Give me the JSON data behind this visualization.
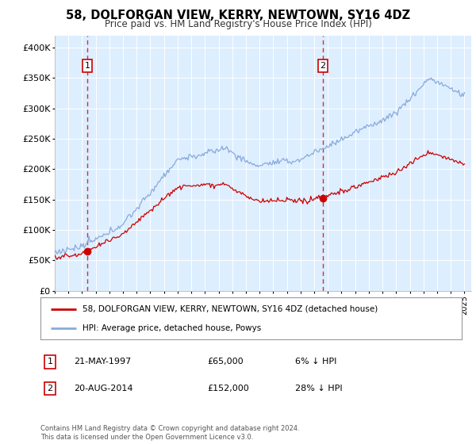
{
  "title": "58, DOLFORGAN VIEW, KERRY, NEWTOWN, SY16 4DZ",
  "subtitle": "Price paid vs. HM Land Registry's House Price Index (HPI)",
  "legend_line1": "58, DOLFORGAN VIEW, KERRY, NEWTOWN, SY16 4DZ (detached house)",
  "legend_line2": "HPI: Average price, detached house, Powys",
  "annotation1_label": "1",
  "annotation1_date": "21-MAY-1997",
  "annotation1_price": "£65,000",
  "annotation1_hpi": "6% ↓ HPI",
  "annotation1_year": 1997.38,
  "annotation1_value": 65000,
  "annotation2_label": "2",
  "annotation2_date": "20-AUG-2014",
  "annotation2_price": "£152,000",
  "annotation2_hpi": "28% ↓ HPI",
  "annotation2_year": 2014.63,
  "annotation2_value": 152000,
  "line_color_property": "#cc0000",
  "line_color_hpi": "#88aadd",
  "plot_bg": "#ddeeff",
  "ylim": [
    0,
    420000
  ],
  "yticks": [
    0,
    50000,
    100000,
    150000,
    200000,
    250000,
    300000,
    350000,
    400000
  ],
  "ytick_labels": [
    "£0",
    "£50K",
    "£100K",
    "£150K",
    "£200K",
    "£250K",
    "£300K",
    "£350K",
    "£400K"
  ],
  "footer": "Contains HM Land Registry data © Crown copyright and database right 2024.\nThis data is licensed under the Open Government Licence v3.0."
}
